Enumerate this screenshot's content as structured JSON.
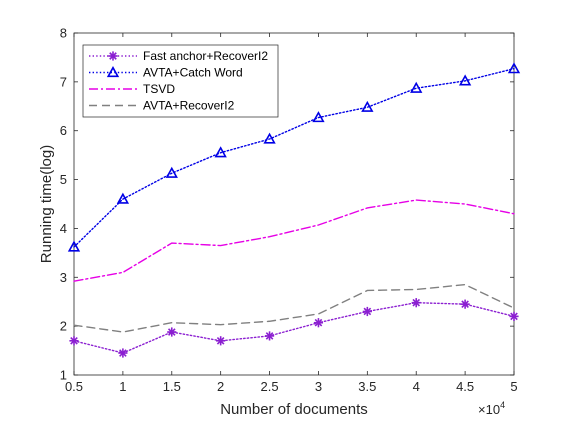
{
  "chart_data": {
    "type": "line",
    "xlabel": "Number of documents",
    "ylabel": "Running time(log)",
    "x_exponent_label": "×10",
    "x_exponent_power": "4",
    "x": [
      0.5,
      1,
      1.5,
      2,
      2.5,
      3,
      3.5,
      4,
      4.5,
      5
    ],
    "xlim": [
      0.5,
      5
    ],
    "ylim": [
      1,
      8
    ],
    "x_ticks": [
      0.5,
      1,
      1.5,
      2,
      2.5,
      3,
      3.5,
      4,
      4.5,
      5
    ],
    "y_ticks": [
      1,
      2,
      3,
      4,
      5,
      6,
      7,
      8
    ],
    "legend_position": "top-left",
    "grid": false,
    "series": [
      {
        "name": "Fast anchor+RecoverI2",
        "color": "#8b1fd1",
        "style": "dotted",
        "marker": "asterisk",
        "values": [
          1.7,
          1.45,
          1.88,
          1.7,
          1.8,
          2.07,
          2.3,
          2.48,
          2.45,
          2.2
        ]
      },
      {
        "name": "AVTA+Catch Word",
        "color": "#0000e6",
        "style": "dotted",
        "marker": "triangle",
        "values": [
          3.62,
          4.6,
          5.13,
          5.55,
          5.83,
          6.27,
          6.48,
          6.87,
          7.02,
          7.27
        ]
      },
      {
        "name": "TSVD",
        "color": "#e600e6",
        "style": "dashdot",
        "marker": "none",
        "values": [
          2.92,
          3.1,
          3.7,
          3.65,
          3.83,
          4.07,
          4.42,
          4.58,
          4.5,
          4.3
        ]
      },
      {
        "name": "AVTA+RecoverI2",
        "color": "#808080",
        "style": "dashed",
        "marker": "none",
        "values": [
          2.02,
          1.88,
          2.07,
          2.03,
          2.1,
          2.25,
          2.73,
          2.75,
          2.85,
          2.37
        ]
      }
    ]
  }
}
